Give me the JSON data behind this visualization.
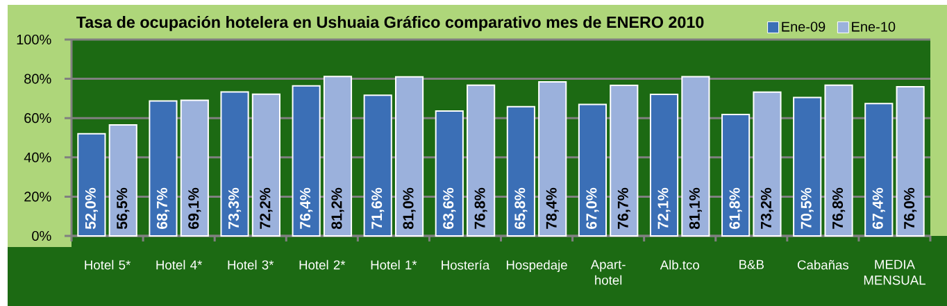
{
  "chart_data": {
    "type": "bar",
    "title": "Tasa de ocupación hotelera en Ushuaia Gráfico comparativo mes de ENERO 2010",
    "categories": [
      "Hotel 5*",
      "Hotel 4*",
      "Hotel 3*",
      "Hotel 2*",
      "Hotel 1*",
      "Hostería",
      "Hospedaje",
      "Apart-hotel",
      "Alb.tco",
      "B&B",
      "Cabañas",
      "MEDIA MENSUAL"
    ],
    "series": [
      {
        "name": "Ene-09",
        "color": "#3b6fb6",
        "values": [
          52.0,
          68.7,
          73.3,
          76.4,
          71.6,
          63.6,
          65.8,
          67.0,
          72.1,
          61.8,
          70.5,
          67.4
        ],
        "value_labels": [
          "52,0%",
          "68,7%",
          "73,3%",
          "76,4%",
          "71,6%",
          "63,6%",
          "65,8%",
          "67,0%",
          "72,1%",
          "61,8%",
          "70,5%",
          "67,4%"
        ]
      },
      {
        "name": "Ene-10",
        "color": "#9bb1dc",
        "values": [
          56.5,
          69.1,
          72.2,
          81.2,
          81.0,
          76.8,
          78.4,
          76.7,
          81.1,
          73.2,
          76.8,
          76.0
        ],
        "value_labels": [
          "56,5%",
          "69,1%",
          "72,2%",
          "81,2%",
          "81,0%",
          "76,8%",
          "78,4%",
          "76,7%",
          "81,1%",
          "73,2%",
          "76,8%",
          "76,0%"
        ]
      }
    ],
    "ylim": [
      0,
      100
    ],
    "yticks": [
      {
        "value": 0,
        "label": "0%"
      },
      {
        "value": 20,
        "label": "20%"
      },
      {
        "value": 40,
        "label": "40%"
      },
      {
        "value": 60,
        "label": "60%"
      },
      {
        "value": 80,
        "label": "80%"
      },
      {
        "value": 100,
        "label": "100%"
      }
    ],
    "grid": "y",
    "legend": "top right"
  }
}
